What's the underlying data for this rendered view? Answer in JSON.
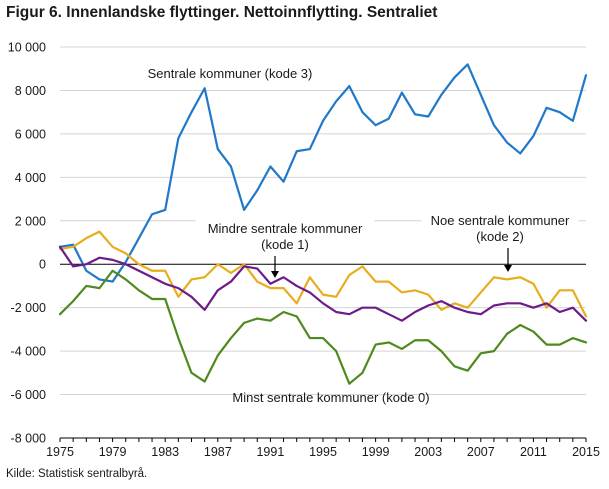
{
  "header": {
    "title": "Figur 6. Innenlandske flyttinger. Nettoinnflytting. Sentraliet"
  },
  "footer": {
    "source": "Kilde: Statistisk sentralbyrå."
  },
  "chart_data": {
    "type": "line",
    "title": "Figur 6. Innenlandske flyttinger. Nettoinnflytting. Sentraliet",
    "xlabel": "",
    "ylabel": "",
    "xlim": [
      1975,
      2015
    ],
    "ylim": [
      -8000,
      10000
    ],
    "x_ticks": [
      "1975",
      "1979",
      "1983",
      "1987",
      "1991",
      "1995",
      "1999",
      "2003",
      "2007",
      "2011",
      "2015"
    ],
    "y_ticks": [
      "10 000",
      "8 000",
      "6 000",
      "4 000",
      "2 000",
      "0",
      "-2 000",
      "-4 000",
      "-6 000",
      "-8 000"
    ],
    "grid": "horizontal",
    "legend": "none (inline labels)",
    "x": [
      1975,
      1976,
      1977,
      1978,
      1979,
      1980,
      1981,
      1982,
      1983,
      1984,
      1985,
      1986,
      1987,
      1988,
      1989,
      1990,
      1991,
      1992,
      1993,
      1994,
      1995,
      1996,
      1997,
      1998,
      1999,
      2000,
      2001,
      2002,
      2003,
      2004,
      2005,
      2006,
      2007,
      2008,
      2009,
      2010,
      2011,
      2012,
      2013,
      2014,
      2015
    ],
    "series": [
      {
        "name": "Sentrale kommuner (kode 3)",
        "color": "#1f78c8",
        "values": [
          800,
          900,
          -300,
          -700,
          -800,
          100,
          1200,
          2300,
          2500,
          5800,
          7000,
          8100,
          5300,
          4500,
          2500,
          3400,
          4500,
          3800,
          5200,
          5300,
          6600,
          7500,
          8200,
          7000,
          6400,
          6700,
          7900,
          6900,
          6800,
          7800,
          8600,
          9200,
          7800,
          6400,
          5600,
          5100,
          5900,
          7200,
          7000,
          6600,
          8700
        ]
      },
      {
        "name": "Noe sentrale kommuner (kode 2)",
        "color": "#e8ad1f",
        "values": [
          700,
          800,
          1200,
          1500,
          800,
          500,
          0,
          -300,
          -300,
          -1500,
          -700,
          -600,
          0,
          -400,
          0,
          -800,
          -1100,
          -1100,
          -1800,
          -600,
          -1400,
          -1500,
          -500,
          -100,
          -800,
          -800,
          -1300,
          -1200,
          -1400,
          -2100,
          -1800,
          -2000,
          -1300,
          -600,
          -700,
          -600,
          -900,
          -2000,
          -1200,
          -1200,
          -2400
        ]
      },
      {
        "name": "Mindre sentrale kommuner (kode 1)",
        "color": "#6d1b8a",
        "values": [
          800,
          -100,
          0,
          300,
          200,
          0,
          -300,
          -600,
          -900,
          -1100,
          -1500,
          -2100,
          -1200,
          -800,
          -100,
          -200,
          -900,
          -600,
          -1000,
          -1300,
          -1800,
          -2200,
          -2300,
          -2000,
          -2000,
          -2300,
          -2600,
          -2200,
          -1900,
          -1700,
          -2000,
          -2200,
          -2300,
          -1900,
          -1800,
          -1800,
          -2000,
          -1800,
          -2200,
          -2000,
          -2600
        ]
      },
      {
        "name": "Minst sentrale kommuner (kode 0)",
        "color": "#4e8a1e",
        "values": [
          -2300,
          -1700,
          -1000,
          -1100,
          -300,
          -700,
          -1200,
          -1600,
          -1600,
          -3400,
          -5000,
          -5400,
          -4200,
          -3400,
          -2700,
          -2500,
          -2600,
          -2200,
          -2400,
          -3400,
          -3400,
          -4000,
          -5500,
          -5000,
          -3700,
          -3600,
          -3900,
          -3500,
          -3500,
          -4000,
          -4700,
          -4900,
          -4100,
          -4000,
          -3200,
          -2800,
          -3100,
          -3700,
          -3700,
          -3400,
          -3600
        ]
      }
    ],
    "annotations": [
      {
        "lines": [
          "Sentrale kommuner (kode 3)"
        ]
      },
      {
        "lines": [
          "Mindre sentrale kommuner",
          "(kode 1)"
        ],
        "arrow": true
      },
      {
        "lines": [
          "Noe sentrale kommuner",
          "(kode 2)"
        ],
        "arrow": true
      },
      {
        "lines": [
          "Minst sentrale kommuner (kode 0)"
        ]
      }
    ]
  }
}
